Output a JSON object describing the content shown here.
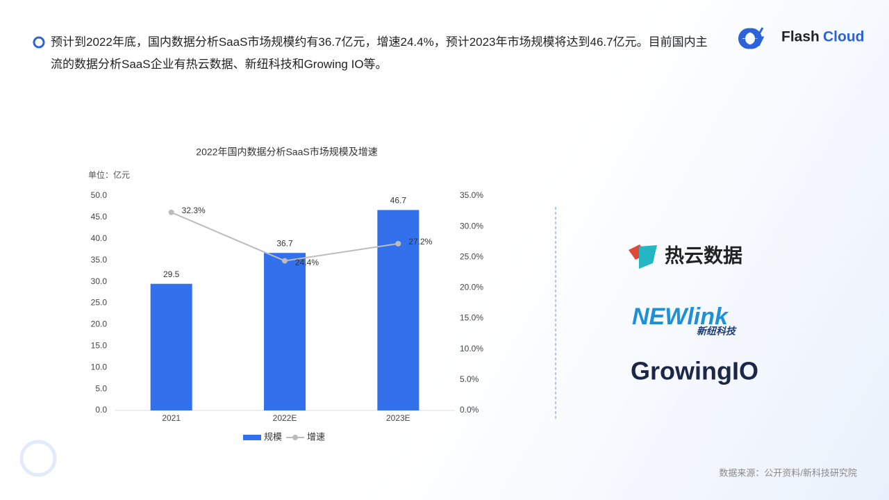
{
  "header": {
    "text": "预计到2022年底，国内数据分析SaaS市场规模约有36.7亿元，增速24.4%，预计2023年市场规模将达到46.7亿元。目前国内主流的数据分析SaaS企业有热云数据、新纽科技和Growing IO等。"
  },
  "brand": {
    "parts": [
      "Flash",
      "Cloud"
    ]
  },
  "chart_data": {
    "type": "bar",
    "title": "2022年国内数据分析SaaS市场规模及增速",
    "unit_label": "单位：亿元",
    "categories": [
      "2021",
      "2022E",
      "2023E"
    ],
    "series": [
      {
        "name": "规模",
        "type": "bar",
        "color": "#3370eb",
        "values": [
          29.5,
          36.7,
          46.7
        ]
      },
      {
        "name": "增速",
        "type": "line",
        "axis": "y2",
        "color": "#bcbcbc",
        "values": [
          32.3,
          24.4,
          27.2
        ],
        "value_labels": [
          "32.3%",
          "24.4%",
          "27.2%"
        ]
      }
    ],
    "ylim": [
      0,
      50
    ],
    "yticks": [
      {
        "value": 0,
        "label": "0.0"
      },
      {
        "value": 5,
        "label": "5.0"
      },
      {
        "value": 10,
        "label": "10.0"
      },
      {
        "value": 15,
        "label": "15.0"
      },
      {
        "value": 20,
        "label": "20.0"
      },
      {
        "value": 25,
        "label": "25.0"
      },
      {
        "value": 30,
        "label": "30.0"
      },
      {
        "value": 35,
        "label": "35.0"
      },
      {
        "value": 40,
        "label": "40.0"
      },
      {
        "value": 45,
        "label": "45.0"
      },
      {
        "value": 50,
        "label": "50.0"
      }
    ],
    "y2lim": [
      0,
      35
    ],
    "y2ticks": [
      {
        "value": 0,
        "label": "0.0%"
      },
      {
        "value": 5,
        "label": "5.0%"
      },
      {
        "value": 10,
        "label": "10.0%"
      },
      {
        "value": 15,
        "label": "15.0%"
      },
      {
        "value": 20,
        "label": "20.0%"
      },
      {
        "value": 25,
        "label": "25.0%"
      },
      {
        "value": 30,
        "label": "30.0%"
      },
      {
        "value": 35,
        "label": "35.0%"
      }
    ],
    "legend": "bottom"
  },
  "companies": [
    "热云数据",
    "NEWlink",
    "新纽科技",
    "GrowingIO"
  ],
  "source": "数据来源：公开资料/新科技研究院"
}
